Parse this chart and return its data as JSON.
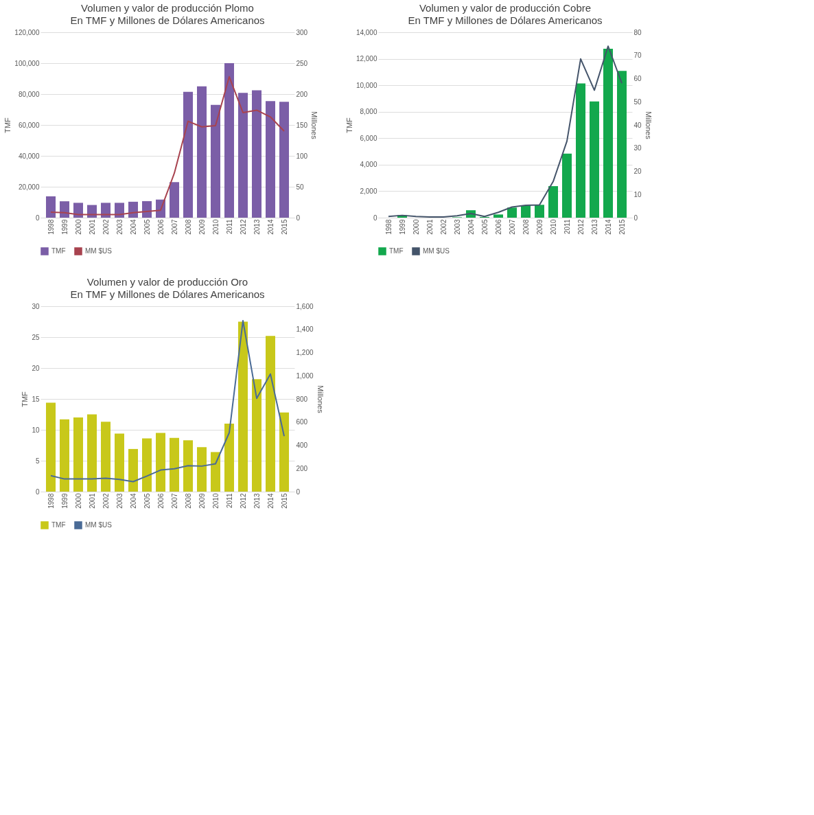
{
  "chart_data": [
    {
      "type": "bar",
      "title": "Volumen y valor de producción Plomo",
      "subtitle": "En TMF y Millones de Dólares Americanos",
      "ylabel": "TMF",
      "y2label": "Millones",
      "legend": "bottom",
      "grid": "y",
      "categories": [
        "1998",
        "1999",
        "2000",
        "2001",
        "2002",
        "2003",
        "2004",
        "2005",
        "2006",
        "2007",
        "2008",
        "2009",
        "2010",
        "2011",
        "2012",
        "2013",
        "2014",
        "2015"
      ],
      "ylim": [
        0,
        120000
      ],
      "yticks": [
        0,
        {
          "value": 20000,
          "label": "20,000"
        },
        {
          "value": 40000,
          "label": "40,000"
        },
        {
          "value": 60000,
          "label": "60,000"
        },
        {
          "value": 80000,
          "label": "80,000"
        },
        {
          "value": 100000,
          "label": "100,000"
        },
        {
          "value": 120000,
          "label": "120,000"
        }
      ],
      "y2lim": [
        0,
        300
      ],
      "y2ticks": [
        0,
        50,
        100,
        150,
        200,
        250,
        300
      ],
      "series": [
        {
          "name": "TMF",
          "color": "#7b5ea7",
          "values": [
            13800,
            10600,
            9600,
            8200,
            9600,
            9600,
            10300,
            10700,
            11700,
            23000,
            81500,
            85000,
            73000,
            100000,
            80800,
            82500,
            75500,
            75000
          ]
        },
        {
          "name": "MM $US",
          "type": "line",
          "axis": "y2",
          "color": "#a8434f",
          "values": [
            9,
            8,
            5,
            5,
            5,
            5,
            8,
            10,
            12,
            72,
            156,
            147,
            149,
            228,
            170,
            174,
            163,
            140
          ]
        }
      ]
    },
    {
      "type": "bar",
      "title": "Volumen y valor de producción Cobre",
      "subtitle": "En TMF y Millones de Dólares Americanos",
      "ylabel": "TMF",
      "y2label": "Millones",
      "legend": "bottom",
      "grid": "y",
      "categories": [
        "1998",
        "1999",
        "2000",
        "2001",
        "2002",
        "2003",
        "2004",
        "2005",
        "2006",
        "2007",
        "2008",
        "2009",
        "2010",
        "2011",
        "2012",
        "2013",
        "2014",
        "2015"
      ],
      "ylim": [
        0,
        14000
      ],
      "yticks": [
        0,
        {
          "value": 2000,
          "label": "2,000"
        },
        {
          "value": 4000,
          "label": "4,000"
        },
        {
          "value": 6000,
          "label": "6,000"
        },
        {
          "value": 8000,
          "label": "8,000"
        },
        {
          "value": 10000,
          "label": "10,000"
        },
        {
          "value": 12000,
          "label": "12,000"
        },
        {
          "value": 14000,
          "label": "14,000"
        }
      ],
      "y2lim": [
        0,
        80
      ],
      "y2ticks": [
        0,
        10,
        20,
        30,
        40,
        50,
        60,
        70,
        80
      ],
      "series": [
        {
          "name": "TMF",
          "color": "#13a84d",
          "values": [
            null,
            190,
            null,
            null,
            null,
            30,
            560,
            50,
            240,
            760,
            920,
            970,
            2380,
            4830,
            10140,
            8780,
            12750,
            11080
          ]
        },
        {
          "name": "MM $US",
          "type": "line",
          "axis": "y2",
          "color": "#44546a",
          "values": [
            0.5,
            1,
            0.5,
            0.3,
            0.3,
            0.8,
            1.8,
            0.5,
            2.3,
            4.6,
            5.3,
            5.5,
            15.6,
            33,
            68.5,
            55,
            74,
            58
          ]
        }
      ]
    },
    {
      "type": "bar",
      "title": "Volumen y valor de producción Oro",
      "subtitle": "En TMF y Millones de Dólares Americanos",
      "ylabel": "TMF",
      "y2label": "Millones",
      "legend": "bottom",
      "grid": "y",
      "categories": [
        "1998",
        "1999",
        "2000",
        "2001",
        "2002",
        "2003",
        "2004",
        "2005",
        "2006",
        "2007",
        "2008",
        "2009",
        "2010",
        "2011",
        "2012",
        "2013",
        "2014",
        "2015"
      ],
      "ylim": [
        0,
        30
      ],
      "yticks": [
        0,
        5,
        10,
        15,
        20,
        25,
        30
      ],
      "y2lim": [
        0,
        1600
      ],
      "y2ticks": [
        0,
        200,
        400,
        600,
        800,
        {
          "value": 1000,
          "label": "1,000"
        },
        {
          "value": 1200,
          "label": "1,200"
        },
        {
          "value": 1400,
          "label": "1,400"
        },
        {
          "value": 1600,
          "label": "1,600"
        }
      ],
      "series": [
        {
          "name": "TMF",
          "color": "#c8c81a",
          "values": [
            14.4,
            11.7,
            12.0,
            12.5,
            11.3,
            9.4,
            6.9,
            8.6,
            9.5,
            8.7,
            8.3,
            7.2,
            6.4,
            11.0,
            27.5,
            18.2,
            25.2,
            12.8
          ]
        },
        {
          "name": "MM $US",
          "type": "line",
          "axis": "y2",
          "color": "#4a6b96",
          "values": [
            138,
            109,
            109,
            109,
            115,
            105,
            86,
            134,
            186,
            197,
            224,
            220,
            240,
            508,
            1475,
            805,
            1015,
            479
          ]
        }
      ]
    }
  ]
}
